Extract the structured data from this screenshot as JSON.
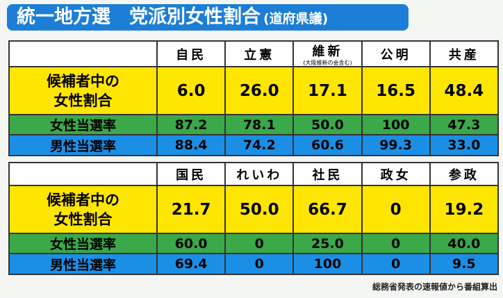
{
  "header": {
    "title": "統一地方選　党派別女性割合",
    "subtitle": "(道府県議)"
  },
  "tables": [
    {
      "columns": [
        {
          "name": "自民"
        },
        {
          "name": "立憲"
        },
        {
          "name": "維新",
          "note": "(大阪維新の会含む)"
        },
        {
          "name": "公明"
        },
        {
          "name": "共産"
        }
      ],
      "rows": [
        {
          "label": "候補者中の\n女性割合",
          "values": [
            "6.0",
            "26.0",
            "17.1",
            "16.5",
            "48.4"
          ]
        },
        {
          "label": "女性当選率",
          "values": [
            "87.2",
            "78.1",
            "50.0",
            "100",
            "47.3"
          ]
        },
        {
          "label": "男性当選率",
          "values": [
            "88.4",
            "74.2",
            "60.6",
            "99.3",
            "33.0"
          ]
        }
      ]
    },
    {
      "columns": [
        {
          "name": "国民"
        },
        {
          "name": "れいわ"
        },
        {
          "name": "社民"
        },
        {
          "name": "政女"
        },
        {
          "name": "参政"
        }
      ],
      "rows": [
        {
          "label": "候補者中の\n女性割合",
          "values": [
            "21.7",
            "50.0",
            "66.7",
            "0",
            "19.2"
          ]
        },
        {
          "label": "女性当選率",
          "values": [
            "60.0",
            "0",
            "25.0",
            "0",
            "40.0"
          ]
        },
        {
          "label": "男性当選率",
          "values": [
            "69.4",
            "0",
            "100",
            "0",
            "9.5"
          ]
        }
      ]
    }
  ],
  "footer": {
    "source": "総務省発表の速報値から番組算出"
  }
}
